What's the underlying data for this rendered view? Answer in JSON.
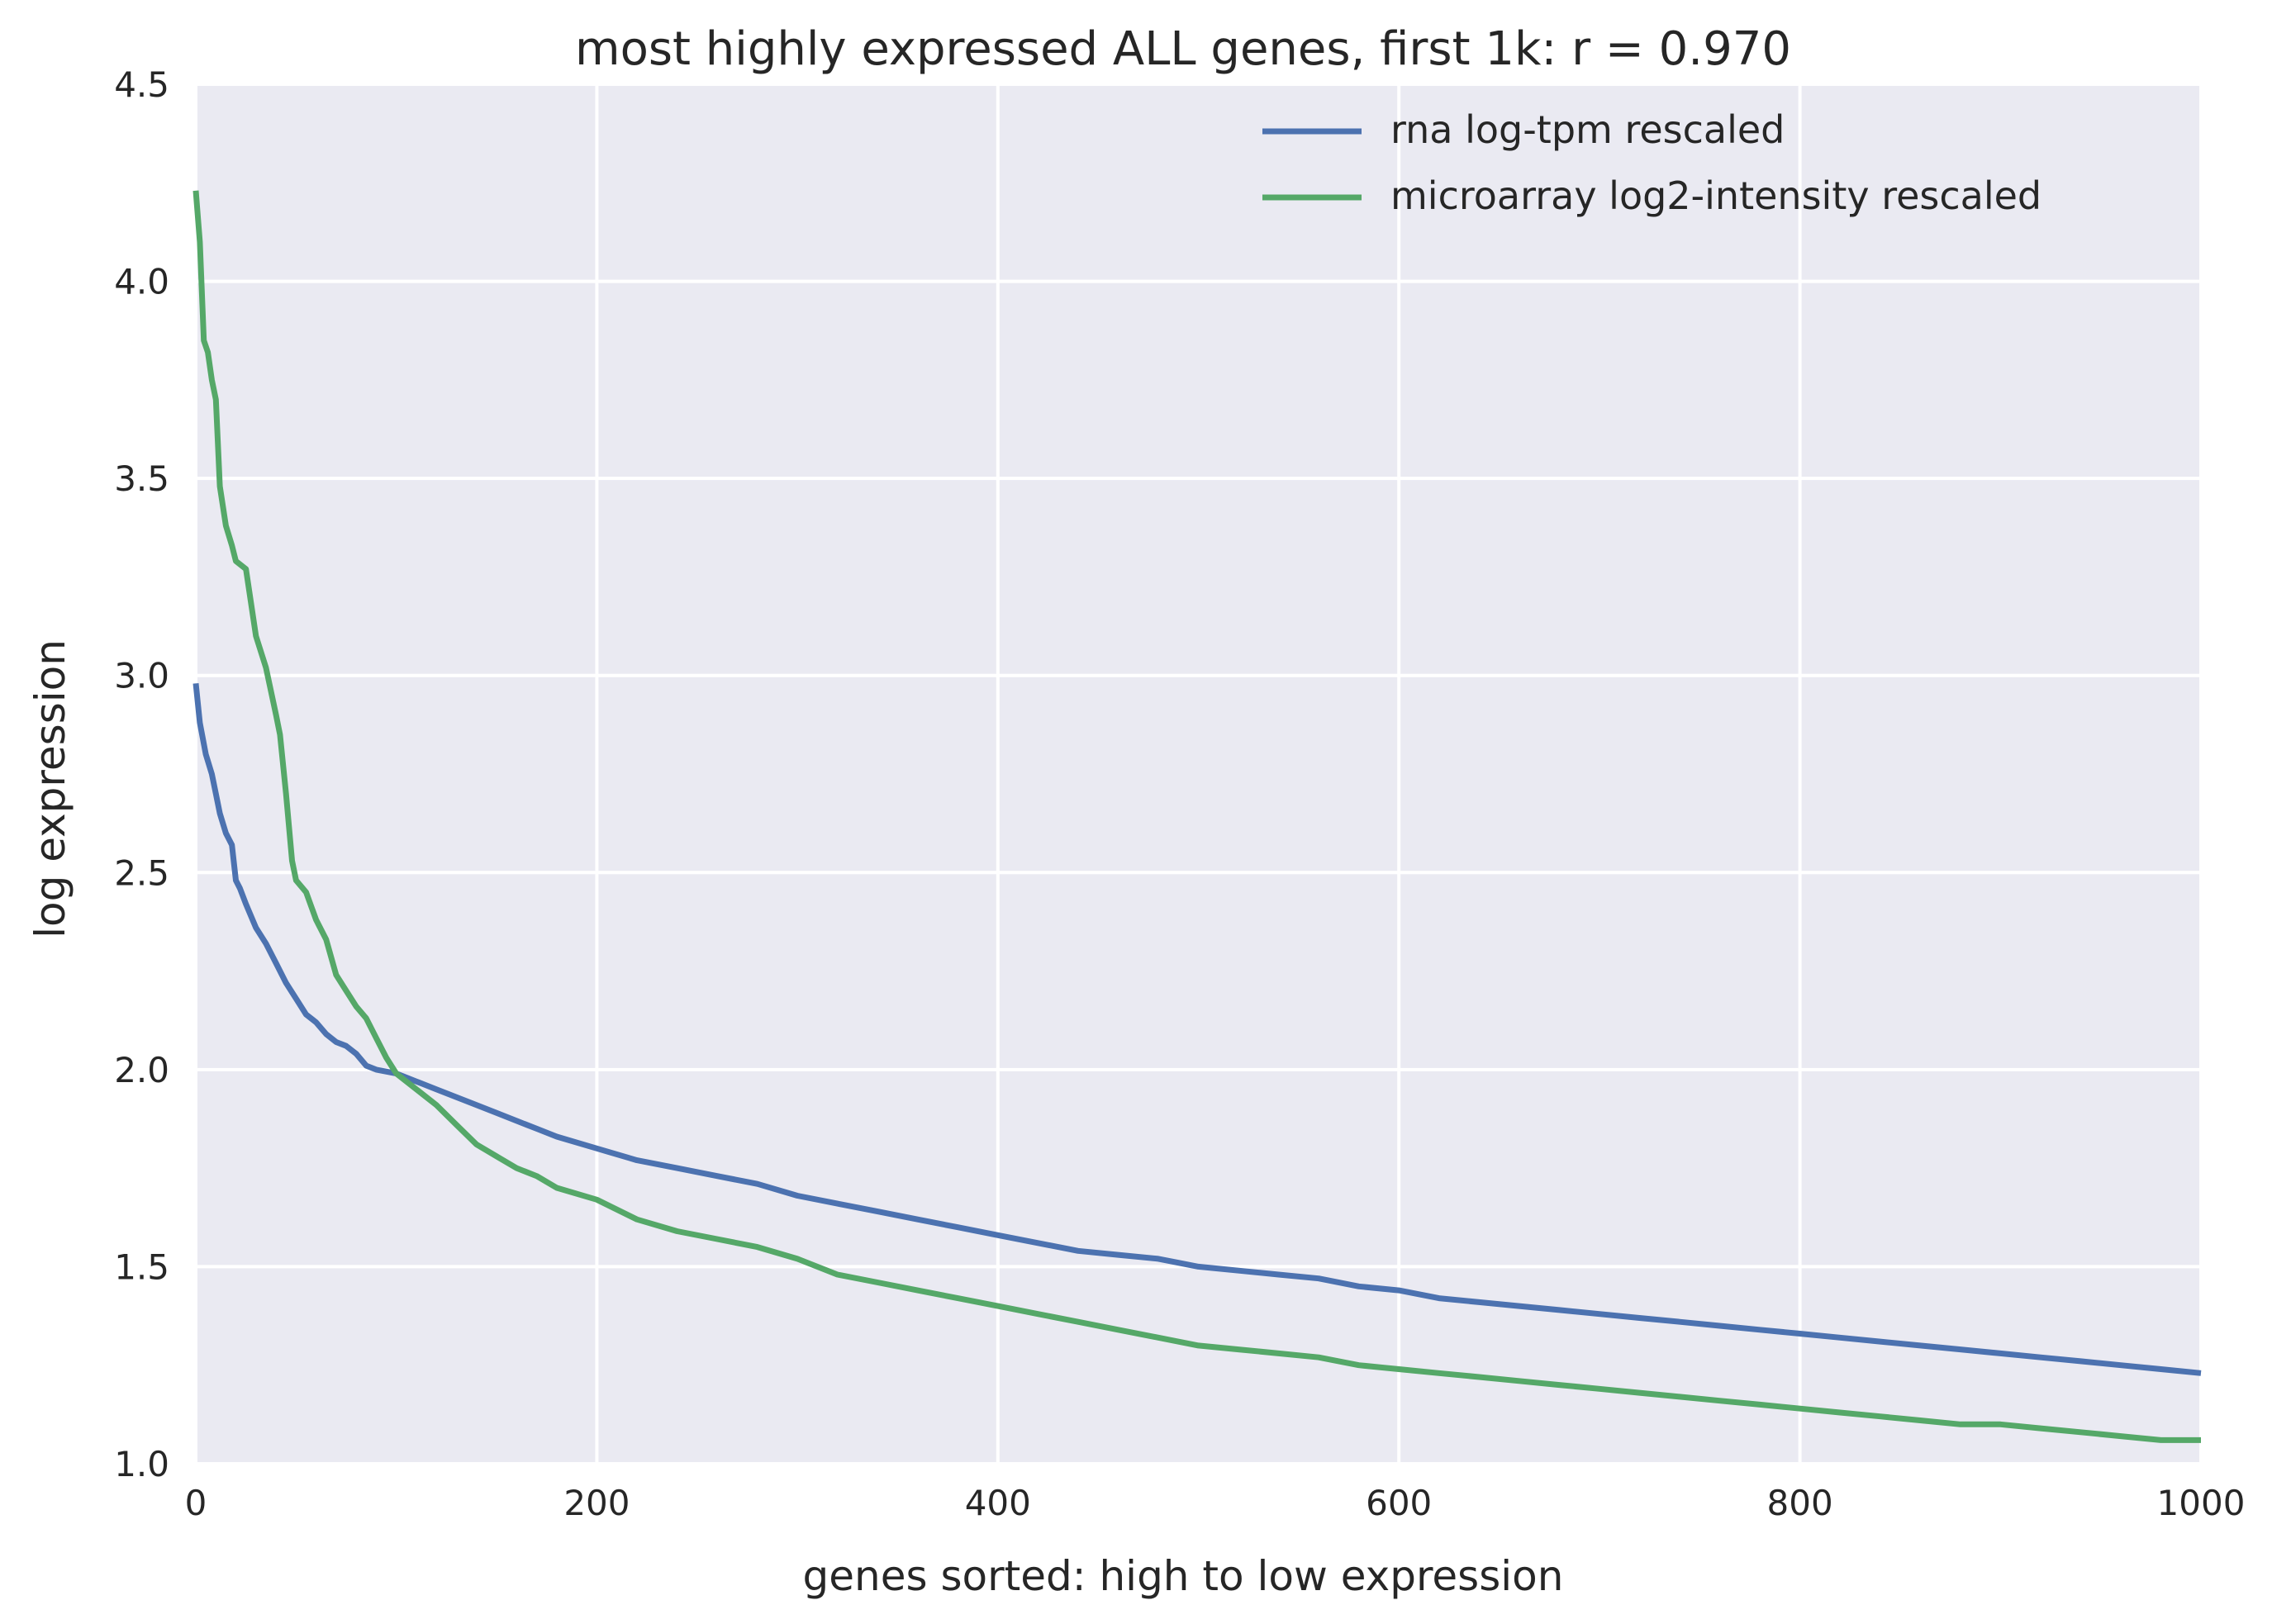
{
  "chart_data": {
    "type": "line",
    "title": "most highly expressed ALL genes, first 1k: r = 0.970",
    "xlabel": "genes sorted: high to low expression",
    "ylabel": "log expression",
    "xlim": [
      0,
      1000
    ],
    "ylim": [
      1.0,
      4.5
    ],
    "xticks": [
      0,
      200,
      400,
      600,
      800,
      1000
    ],
    "xtick_labels": [
      "0",
      "200",
      "400",
      "600",
      "800",
      "1000"
    ],
    "yticks": [
      1.0,
      1.5,
      2.0,
      2.5,
      3.0,
      3.5,
      4.0,
      4.5
    ],
    "ytick_labels": [
      "1.0",
      "1.5",
      "2.0",
      "2.5",
      "3.0",
      "3.5",
      "4.0",
      "4.5"
    ],
    "grid": true,
    "background": "#eaeaf2",
    "legend_position": "top-right",
    "series": [
      {
        "name": "rna log-tpm rescaled",
        "color": "#4c72b0",
        "x": [
          0,
          2,
          5,
          8,
          10,
          12,
          15,
          18,
          20,
          22,
          25,
          30,
          35,
          40,
          45,
          50,
          55,
          60,
          65,
          70,
          75,
          80,
          85,
          90,
          100,
          110,
          120,
          130,
          140,
          150,
          160,
          170,
          180,
          200,
          220,
          240,
          260,
          280,
          300,
          320,
          340,
          360,
          380,
          400,
          420,
          440,
          460,
          480,
          500,
          520,
          540,
          560,
          580,
          600,
          620,
          640,
          660,
          680,
          700,
          720,
          740,
          760,
          780,
          800,
          820,
          840,
          860,
          880,
          900,
          920,
          940,
          960,
          980,
          1000
        ],
        "y": [
          2.98,
          2.88,
          2.8,
          2.75,
          2.7,
          2.65,
          2.6,
          2.57,
          2.48,
          2.46,
          2.42,
          2.36,
          2.32,
          2.27,
          2.22,
          2.18,
          2.14,
          2.12,
          2.09,
          2.07,
          2.06,
          2.04,
          2.01,
          2.0,
          1.99,
          1.97,
          1.95,
          1.93,
          1.91,
          1.89,
          1.87,
          1.85,
          1.83,
          1.8,
          1.77,
          1.75,
          1.73,
          1.71,
          1.68,
          1.66,
          1.64,
          1.62,
          1.6,
          1.58,
          1.56,
          1.54,
          1.53,
          1.52,
          1.5,
          1.49,
          1.48,
          1.47,
          1.45,
          1.44,
          1.42,
          1.41,
          1.4,
          1.39,
          1.38,
          1.37,
          1.36,
          1.35,
          1.34,
          1.33,
          1.32,
          1.31,
          1.3,
          1.29,
          1.28,
          1.27,
          1.26,
          1.25,
          1.24,
          1.23
        ]
      },
      {
        "name": "microarray log2-intensity rescaled",
        "color": "#55a868",
        "x": [
          0,
          2,
          4,
          6,
          8,
          10,
          12,
          15,
          18,
          20,
          25,
          30,
          35,
          40,
          42,
          45,
          48,
          50,
          55,
          60,
          65,
          70,
          75,
          80,
          85,
          90,
          95,
          100,
          110,
          120,
          130,
          140,
          150,
          160,
          170,
          180,
          200,
          220,
          240,
          260,
          280,
          300,
          320,
          340,
          360,
          380,
          400,
          420,
          440,
          460,
          480,
          500,
          520,
          540,
          560,
          580,
          600,
          620,
          640,
          660,
          680,
          700,
          720,
          740,
          760,
          780,
          800,
          820,
          840,
          860,
          880,
          900,
          920,
          940,
          960,
          980,
          1000
        ],
        "y": [
          4.23,
          4.1,
          3.85,
          3.82,
          3.75,
          3.7,
          3.48,
          3.38,
          3.33,
          3.29,
          3.27,
          3.1,
          3.02,
          2.9,
          2.85,
          2.7,
          2.53,
          2.48,
          2.45,
          2.38,
          2.33,
          2.24,
          2.2,
          2.16,
          2.13,
          2.08,
          2.03,
          1.99,
          1.95,
          1.91,
          1.86,
          1.81,
          1.78,
          1.75,
          1.73,
          1.7,
          1.67,
          1.62,
          1.59,
          1.57,
          1.55,
          1.52,
          1.48,
          1.46,
          1.44,
          1.42,
          1.4,
          1.38,
          1.36,
          1.34,
          1.32,
          1.3,
          1.29,
          1.28,
          1.27,
          1.25,
          1.24,
          1.23,
          1.22,
          1.21,
          1.2,
          1.19,
          1.18,
          1.17,
          1.16,
          1.15,
          1.14,
          1.13,
          1.12,
          1.11,
          1.1,
          1.1,
          1.09,
          1.08,
          1.07,
          1.06,
          1.06
        ]
      }
    ]
  }
}
